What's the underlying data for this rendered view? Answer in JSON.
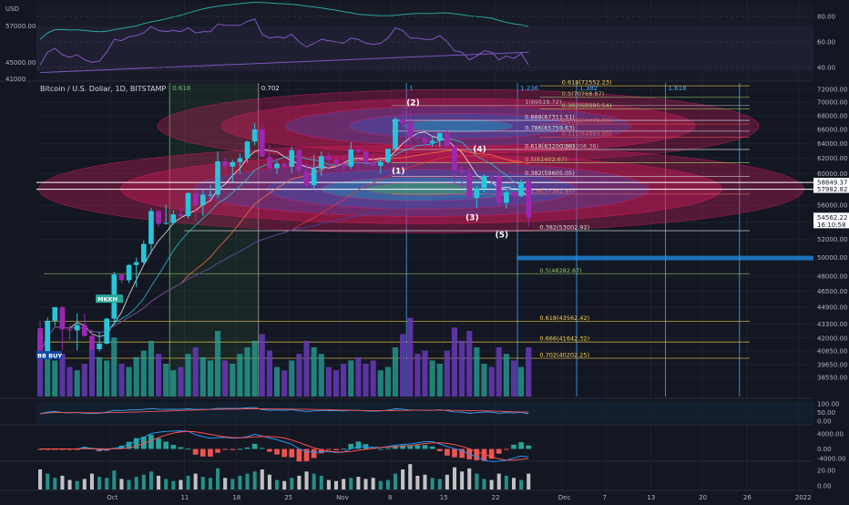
{
  "header": {
    "symbol_title": "Bitcoin / U.S. Dollar, 1D, BITSTAMP",
    "mini_axis_top": "USD",
    "mini_axis_labels": [
      "57000.00",
      "45000.00",
      "41000"
    ]
  },
  "colors": {
    "background": "#131722",
    "bull_candle": "#26c6da",
    "bear_candle": "#9c27b0",
    "fib_level": "#c4c4a0",
    "ellipse_red": "#e91e63",
    "ellipse_blue": "#3f51b5",
    "rsi_line": "#7e57c2",
    "price_tag": "#ffffff"
  },
  "fib_labels": [
    {
      "text": "1(69519.72)",
      "value": 69519.72,
      "color": "#b2b5be"
    },
    {
      "text": "0.888(67311.51)",
      "value": 67311.51,
      "color": "#e0e0e0"
    },
    {
      "text": "0.786(65759.63)",
      "value": 65759.63,
      "color": "#e0e0e0"
    },
    {
      "text": "0.618(63200.30)",
      "value": 63200.3,
      "color": "#e0e0e0"
    },
    {
      "text": "0.5(61402.67)",
      "value": 61402.67,
      "color": "#9ccc65"
    },
    {
      "text": "0.382(59605.05)",
      "value": 59605.05,
      "color": "#e0e0e0"
    },
    {
      "text": "0.236(57382.87)",
      "value": 57382.87,
      "color": "#e57373"
    },
    {
      "text": "0.382(53002.92)",
      "value": 53002.92,
      "color": "#e0e0e0"
    },
    {
      "text": "0.5(48282.67)",
      "value": 48282.67,
      "color": "#9ccc65"
    },
    {
      "text": "0.618(43562.42)",
      "value": 43562.42,
      "color": "#ffd54f"
    },
    {
      "text": "0.666(41642.32)",
      "value": 41642.32,
      "color": "#ffd54f"
    },
    {
      "text": "0.702(40202.25)",
      "value": 40202.25,
      "color": "#ffd54f"
    },
    {
      "text": "0.618(72552.23)",
      "value": 72552.23,
      "color": "#ffd54f"
    },
    {
      "text": "0.5(70768.87)",
      "value": 70768.87,
      "color": "#9ccc65"
    },
    {
      "text": "0.382(68985.54)",
      "value": 68985.54,
      "color": "#9ccc65"
    },
    {
      "text": "0.236(66779.03)",
      "value": 66779.03,
      "color": "#ef5350"
    },
    {
      "text": "0.111(64889.90)",
      "value": 64889.9,
      "color": "#ef5350"
    },
    {
      "text": "0(63208.36)",
      "value": 63208.36,
      "color": "#b2b5be"
    }
  ],
  "top_ratio_labels": [
    {
      "text": "0.618",
      "color": "#66bb6a"
    },
    {
      "text": "0.702",
      "color": "#e0e0e0"
    },
    {
      "text": "1",
      "color": "#42a5f5"
    },
    {
      "text": "1.236",
      "color": "#42a5f5"
    },
    {
      "text": "1.382",
      "color": "#42a5f5"
    },
    {
      "text": "1.618",
      "color": "#42a5f5"
    }
  ],
  "wave_labels": [
    "(1)",
    "(2)",
    "(3)",
    "(4)",
    "(5)"
  ],
  "text_tags": [
    "BB BUY",
    "MKKH"
  ],
  "price_tags": [
    {
      "text": "58849.37",
      "value": 58849.37
    },
    {
      "text": "57982.82",
      "value": 57982.82
    },
    {
      "text": "54562.22",
      "value": 54562.22
    },
    {
      "text": "16:10:58",
      "value": 54000
    }
  ],
  "right_axis": {
    "price_ticks": [
      "72000.00",
      "70000.00",
      "68000.00",
      "66000.00",
      "64000.00",
      "62000.00",
      "60000.00",
      "58000.00",
      "56000.00",
      "54000.00",
      "52000.00",
      "50000.00",
      "48000.00",
      "46500.00",
      "44900.00",
      "43300.00",
      "42000.00",
      "40850.00",
      "39650.00",
      "38550.00"
    ],
    "rsi_ticks": [
      "80.00",
      "60.00",
      "40.00"
    ],
    "osc1_ticks": [
      "100.00",
      "50.00",
      "0.00"
    ],
    "osc2_ticks": [
      "4000.00",
      "0.00",
      "-4000.00"
    ],
    "osc3_ticks": [
      "20.00",
      "0.00"
    ]
  },
  "x_axis": {
    "labels": [
      "Oct",
      "11",
      "18",
      "25",
      "Nov",
      "8",
      "15",
      "22",
      "Dec",
      "7",
      "13",
      "20",
      "26",
      "2022"
    ]
  },
  "chart_data": {
    "type": "candlestick",
    "title": "Bitcoin / U.S. Dollar, 1D, BITSTAMP",
    "x_range": [
      "2021-09-21",
      "2022-01-04"
    ],
    "y_range": [
      37000,
      73000
    ],
    "y_scale": "log",
    "dates": [
      "2021-09-21",
      "2021-09-22",
      "2021-09-23",
      "2021-09-24",
      "2021-09-25",
      "2021-09-26",
      "2021-09-27",
      "2021-09-28",
      "2021-09-29",
      "2021-09-30",
      "2021-10-01",
      "2021-10-02",
      "2021-10-03",
      "2021-10-04",
      "2021-10-05",
      "2021-10-06",
      "2021-10-07",
      "2021-10-08",
      "2021-10-09",
      "2021-10-10",
      "2021-10-11",
      "2021-10-12",
      "2021-10-13",
      "2021-10-14",
      "2021-10-15",
      "2021-10-16",
      "2021-10-17",
      "2021-10-18",
      "2021-10-19",
      "2021-10-20",
      "2021-10-21",
      "2021-10-22",
      "2021-10-23",
      "2021-10-24",
      "2021-10-25",
      "2021-10-26",
      "2021-10-27",
      "2021-10-28",
      "2021-10-29",
      "2021-10-30",
      "2021-10-31",
      "2021-11-01",
      "2021-11-02",
      "2021-11-03",
      "2021-11-04",
      "2021-11-05",
      "2021-11-06",
      "2021-11-07",
      "2021-11-08",
      "2021-11-09",
      "2021-11-10",
      "2021-11-11",
      "2021-11-12",
      "2021-11-13",
      "2021-11-14",
      "2021-11-15",
      "2021-11-16",
      "2021-11-17",
      "2021-11-18",
      "2021-11-19",
      "2021-11-20",
      "2021-11-21",
      "2021-11-22",
      "2021-11-23",
      "2021-11-24",
      "2021-11-25",
      "2021-11-26"
    ],
    "open": [
      42900,
      40600,
      43600,
      44900,
      42800,
      42700,
      43200,
      42200,
      41000,
      41500,
      43800,
      48200,
      47600,
      49200,
      49500,
      51500,
      55300,
      53800,
      53900,
      54900,
      54700,
      57500,
      56000,
      57300,
      57300,
      61600,
      60900,
      61500,
      62000,
      64300,
      66000,
      62200,
      60700,
      61300,
      60900,
      63100,
      60300,
      58500,
      60600,
      62300,
      61800,
      61300,
      60900,
      63200,
      62900,
      61400,
      61000,
      61500,
      63300,
      67500,
      66900,
      64900,
      64800,
      64100,
      64400,
      65500,
      63600,
      60400,
      60100,
      56900,
      58100,
      59700,
      59600,
      56300,
      57600,
      57100,
      58900
    ],
    "high": [
      43600,
      43900,
      44900,
      45000,
      43200,
      44300,
      44300,
      42800,
      42600,
      43900,
      48500,
      48300,
      49300,
      50000,
      51900,
      55700,
      55400,
      56100,
      55400,
      55700,
      57600,
      57700,
      57800,
      58500,
      62900,
      62000,
      61800,
      62600,
      64400,
      66900,
      66900,
      63800,
      61600,
      61500,
      63600,
      63300,
      61400,
      62500,
      62900,
      62900,
      62300,
      62400,
      64200,
      63500,
      63100,
      62600,
      61600,
      63300,
      67800,
      68800,
      68900,
      65600,
      65300,
      64900,
      65500,
      66200,
      63700,
      61000,
      60800,
      58400,
      59900,
      59800,
      60000,
      57800,
      57700,
      59300,
      59200
    ],
    "low": [
      39600,
      40500,
      43100,
      40900,
      41800,
      40900,
      42100,
      40900,
      40800,
      41400,
      43300,
      47300,
      47300,
      46900,
      49300,
      50400,
      53400,
      53700,
      53700,
      54300,
      54400,
      54100,
      54700,
      56900,
      56900,
      60200,
      58900,
      59900,
      61400,
      63800,
      62300,
      60200,
      59900,
      60500,
      60100,
      59900,
      58300,
      57900,
      59700,
      60700,
      60400,
      59600,
      60600,
      60400,
      60800,
      60800,
      60000,
      61300,
      63300,
      66300,
      63000,
      64100,
      63500,
      63600,
      63500,
      63100,
      58800,
      58200,
      56700,
      55700,
      57600,
      58600,
      55700,
      55600,
      55900,
      57000,
      53500
    ],
    "close": [
      40600,
      43600,
      44900,
      42800,
      42700,
      43200,
      42200,
      41000,
      41500,
      43800,
      48200,
      47600,
      49200,
      49500,
      51500,
      55300,
      53800,
      53900,
      54900,
      54700,
      57500,
      56000,
      57300,
      57300,
      61600,
      60900,
      61500,
      62000,
      64300,
      66000,
      62200,
      60700,
      61300,
      60900,
      63100,
      60300,
      58500,
      60600,
      62300,
      61800,
      61300,
      60900,
      63200,
      62900,
      61400,
      61000,
      61500,
      63300,
      67500,
      66900,
      64900,
      64800,
      64100,
      64400,
      65500,
      63600,
      60400,
      60100,
      56900,
      58100,
      59700,
      59600,
      56300,
      57600,
      57100,
      58900,
      54562
    ],
    "volume": [
      38,
      30,
      22,
      26,
      18,
      16,
      20,
      30,
      24,
      22,
      36,
      20,
      18,
      24,
      28,
      34,
      26,
      20,
      16,
      18,
      26,
      30,
      24,
      22,
      40,
      22,
      20,
      26,
      30,
      34,
      38,
      28,
      18,
      16,
      22,
      26,
      34,
      30,
      26,
      18,
      16,
      20,
      22,
      24,
      20,
      22,
      16,
      18,
      30,
      38,
      48,
      26,
      28,
      22,
      20,
      28,
      42,
      34,
      40,
      30,
      20,
      18,
      30,
      26,
      22,
      18,
      30
    ],
    "rsi_values": [
      42,
      52,
      55,
      50,
      48,
      50,
      46,
      44,
      45,
      52,
      62,
      61,
      64,
      65,
      67,
      72,
      69,
      68,
      69,
      68,
      71,
      67,
      68,
      68,
      74,
      73,
      73,
      73,
      76,
      78,
      66,
      63,
      64,
      63,
      66,
      60,
      56,
      59,
      62,
      61,
      60,
      59,
      63,
      62,
      59,
      58,
      59,
      63,
      71,
      69,
      63,
      63,
      62,
      62,
      65,
      60,
      53,
      52,
      46,
      49,
      53,
      52,
      46,
      49,
      47,
      51,
      42
    ]
  }
}
